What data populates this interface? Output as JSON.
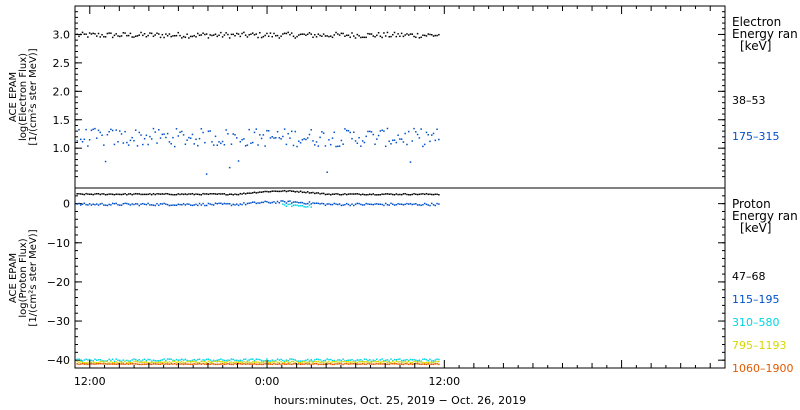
{
  "chart_data": [
    {
      "type": "scatter",
      "panel": "electron",
      "ylabel_lines": [
        "ACE EPAM",
        "log(Electron Flux)",
        "[1/(cm²s ster MeV)]"
      ],
      "ylim": [
        0.3,
        3.5
      ],
      "yticks": [
        1.0,
        1.5,
        2.0,
        2.5,
        3.0
      ],
      "ytick_labels": [
        "1.0",
        "1.5",
        "2.0",
        "2.5",
        "3.0"
      ],
      "legend": {
        "title_lines": [
          "Electron",
          "Energy ran",
          "[keV]"
        ],
        "entries": [
          {
            "label": "38–53",
            "color": "#000000"
          },
          {
            "label": "175–315",
            "color": "#0050c8"
          }
        ]
      },
      "series": [
        {
          "name": "38–53",
          "color": "#000000",
          "base": 3.0,
          "jitter": 0.05
        },
        {
          "name": "175–315",
          "color": "#0050c8",
          "base": 1.2,
          "jitter": 0.16
        }
      ]
    },
    {
      "type": "scatter",
      "panel": "proton",
      "ylabel_lines": [
        "ACE EPAM",
        "log(Proton Flux)",
        "[1/(cm²s ster MeV)]"
      ],
      "ylim": [
        -42,
        4
      ],
      "yticks": [
        -40,
        -30,
        -20,
        -10,
        0
      ],
      "ytick_labels": [
        "−40",
        "−30",
        "−20",
        "−10",
        "0"
      ],
      "legend": {
        "title_lines": [
          "Proton",
          "Energy ran",
          "[keV]"
        ],
        "entries": [
          {
            "label": "47–68",
            "color": "#000000"
          },
          {
            "label": "115–195",
            "color": "#0050c8"
          },
          {
            "label": "310–580",
            "color": "#00d4e6"
          },
          {
            "label": "795–1193",
            "color": "#d7d700"
          },
          {
            "label": "1060–1900",
            "color": "#e05a00"
          }
        ]
      },
      "series": [
        {
          "name": "47–68",
          "color": "#000000",
          "base": 2.6,
          "jitter": 0.15
        },
        {
          "name": "115–195",
          "color": "#0050c8",
          "base": 0.0,
          "jitter": 0.3
        },
        {
          "name": "310–580",
          "color": "#00d4e6",
          "base": -39.8,
          "jitter": 0.3
        },
        {
          "name": "795–1193",
          "color": "#d7d700",
          "base": -40.3,
          "jitter": 0.2
        },
        {
          "name": "1060–1900",
          "color": "#e05a00",
          "base": -40.8,
          "jitter": 0.1
        }
      ]
    }
  ],
  "x_axis": {
    "tick_labels": [
      "12:00",
      "0:00",
      "12:00"
    ],
    "xlabel": "hours:minutes, Oct. 25, 2019 − Oct. 26, 2019",
    "hour_range": [
      -1,
      43
    ],
    "data_end_hour": 23.7
  }
}
